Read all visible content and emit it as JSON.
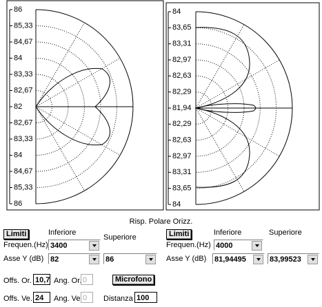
{
  "left_plot": {
    "axis_labels": [
      "86",
      "85,33",
      "84,67",
      "84",
      "83,33",
      "82,67",
      "82",
      "82,67",
      "83,33",
      "84",
      "84,67",
      "85,33",
      "86"
    ]
  },
  "right_plot": {
    "axis_labels": [
      "84",
      "83,65",
      "83,31",
      "82,97",
      "82,63",
      "82,29",
      "81,94",
      "82,29",
      "82,63",
      "82,97",
      "83,31",
      "83,65",
      "84"
    ]
  },
  "caption": "Risp. Polare Orizz.",
  "left_controls": {
    "button": "Limiti",
    "lower_label": "Inferiore",
    "upper_label": "Superiore",
    "freq_label": "Frequen.(Hz)",
    "freq_value": "3400",
    "axis_label": "Asse Y  (dB)",
    "axis_lower": "82",
    "axis_upper": "86"
  },
  "right_controls": {
    "button": "Limiti",
    "lower_label": "Inferiore",
    "upper_label": "Superiore",
    "freq_label": "Frequen.(Hz)",
    "freq_value": "4000",
    "axis_label": "Asse Y  (dB)",
    "axis_lower": "81,94495",
    "axis_upper": "83,99523"
  },
  "offsets": {
    "offs_or_label": "Offs. Or.",
    "offs_or_value": "10,7",
    "ang_or_label": "Ang. Or.",
    "ang_or_value": "0",
    "microfono": "Microfono",
    "offs_ve_label": "Offs. Ve.",
    "offs_ve_value": "24",
    "ang_ve_label": "Ang. Ve.",
    "ang_ve_value": "0",
    "distanza_label": "Distanza",
    "distanza_value": "100"
  }
}
